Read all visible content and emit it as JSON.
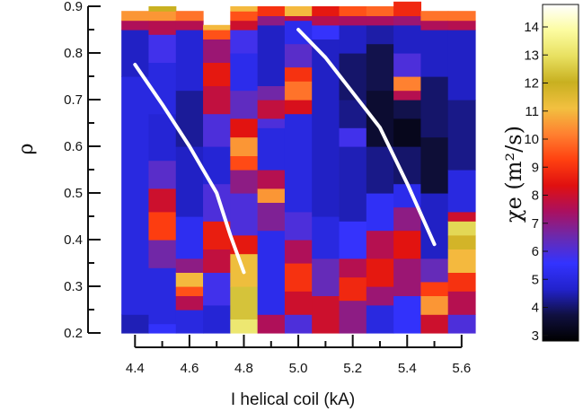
{
  "chart_data": {
    "type": "heatmap",
    "xlabel": "I helical coil (kA)",
    "ylabel": "ρ",
    "x_tick_labels": [
      "4.4",
      "4.6",
      "4.8",
      "5.0",
      "5.2",
      "5.4",
      "5.6"
    ],
    "x_ticks": [
      4.4,
      4.6,
      4.8,
      5.0,
      5.2,
      5.4,
      5.6
    ],
    "y_tick_labels": [
      "0.2",
      "0.3",
      "0.4",
      "0.5",
      "0.6",
      "0.7",
      "0.8",
      "0.9"
    ],
    "y_ticks": [
      0.2,
      0.3,
      0.4,
      0.5,
      0.6,
      0.7,
      0.8,
      0.9
    ],
    "xlim": [
      4.3,
      5.65
    ],
    "ylim": [
      0.2,
      0.9
    ],
    "colorbar": {
      "label": "χe (m²/s)",
      "ticks": [
        3,
        4,
        5,
        6,
        7,
        8,
        9,
        10,
        11,
        12,
        13,
        14
      ],
      "range": [
        2.8,
        14.8
      ],
      "colors": [
        "#000000",
        "#101040",
        "#2222cc",
        "#3333ff",
        "#6a2ab0",
        "#aa1060",
        "#e01010",
        "#ff4010",
        "#ff8030",
        "#f2c040",
        "#c8b020",
        "#e8e060",
        "#fcfca0",
        "#ffffff"
      ]
    },
    "columns": [
      {
        "x": 4.4,
        "rows": [
          [
            0.2,
            0.24,
            4.5
          ],
          [
            0.24,
            0.75,
            5.0
          ],
          [
            0.75,
            0.85,
            4.6
          ],
          [
            0.85,
            0.87,
            7.5
          ],
          [
            0.87,
            0.89,
            10.5
          ]
        ]
      },
      {
        "x": 4.5,
        "rows": [
          [
            0.2,
            0.22,
            5.5
          ],
          [
            0.22,
            0.34,
            5.0
          ],
          [
            0.34,
            0.4,
            6.6
          ],
          [
            0.4,
            0.46,
            9.2
          ],
          [
            0.46,
            0.51,
            8.0
          ],
          [
            0.51,
            0.57,
            6.2
          ],
          [
            0.57,
            0.67,
            4.8
          ],
          [
            0.67,
            0.78,
            5.0
          ],
          [
            0.78,
            0.84,
            5.8
          ],
          [
            0.84,
            0.87,
            7.6
          ],
          [
            0.87,
            0.89,
            10.5
          ],
          [
            0.89,
            0.9,
            12.0
          ]
        ]
      },
      {
        "x": 4.6,
        "rows": [
          [
            0.2,
            0.25,
            5.0
          ],
          [
            0.25,
            0.28,
            7.6
          ],
          [
            0.28,
            0.3,
            9.5
          ],
          [
            0.3,
            0.33,
            11.0
          ],
          [
            0.33,
            0.36,
            7.0
          ],
          [
            0.36,
            0.45,
            5.3
          ],
          [
            0.45,
            0.6,
            4.6
          ],
          [
            0.6,
            0.72,
            4.3
          ],
          [
            0.72,
            0.85,
            4.8
          ],
          [
            0.85,
            0.87,
            7.6
          ],
          [
            0.87,
            0.89,
            10.0
          ]
        ]
      },
      {
        "x": 4.7,
        "rows": [
          [
            0.2,
            0.26,
            4.8
          ],
          [
            0.26,
            0.33,
            5.8
          ],
          [
            0.33,
            0.38,
            7.8
          ],
          [
            0.38,
            0.44,
            8.6
          ],
          [
            0.44,
            0.52,
            6.0
          ],
          [
            0.52,
            0.6,
            4.8
          ],
          [
            0.6,
            0.67,
            6.0
          ],
          [
            0.67,
            0.73,
            7.8
          ],
          [
            0.73,
            0.78,
            8.5
          ],
          [
            0.78,
            0.83,
            7.2
          ],
          [
            0.83,
            0.85,
            9.5
          ],
          [
            0.85,
            0.86,
            11.0
          ]
        ]
      },
      {
        "x": 4.8,
        "rows": [
          [
            0.2,
            0.23,
            13.2
          ],
          [
            0.23,
            0.3,
            12.4
          ],
          [
            0.3,
            0.37,
            11.2
          ],
          [
            0.37,
            0.41,
            8.5
          ],
          [
            0.41,
            0.5,
            6.0
          ],
          [
            0.5,
            0.55,
            7.0
          ],
          [
            0.55,
            0.58,
            9.4
          ],
          [
            0.58,
            0.62,
            10.5
          ],
          [
            0.62,
            0.66,
            8.4
          ],
          [
            0.66,
            0.72,
            6.3
          ],
          [
            0.72,
            0.8,
            5.2
          ],
          [
            0.8,
            0.85,
            5.8
          ],
          [
            0.85,
            0.87,
            8.0
          ],
          [
            0.87,
            0.89,
            9.5
          ],
          [
            0.89,
            0.9,
            11.0
          ]
        ]
      },
      {
        "x": 4.9,
        "rows": [
          [
            0.2,
            0.24,
            7.5
          ],
          [
            0.24,
            0.42,
            5.2
          ],
          [
            0.42,
            0.48,
            6.8
          ],
          [
            0.48,
            0.51,
            10.5
          ],
          [
            0.51,
            0.55,
            7.6
          ],
          [
            0.55,
            0.64,
            5.0
          ],
          [
            0.64,
            0.66,
            6.0
          ],
          [
            0.66,
            0.7,
            7.8
          ],
          [
            0.7,
            0.73,
            6.6
          ],
          [
            0.73,
            0.86,
            4.6
          ],
          [
            0.86,
            0.88,
            7.0
          ],
          [
            0.88,
            0.9,
            9.0
          ]
        ]
      },
      {
        "x": 5.0,
        "rows": [
          [
            0.2,
            0.24,
            6.0
          ],
          [
            0.24,
            0.29,
            8.0
          ],
          [
            0.29,
            0.35,
            9.0
          ],
          [
            0.35,
            0.4,
            7.5
          ],
          [
            0.4,
            0.46,
            6.0
          ],
          [
            0.46,
            0.67,
            5.0
          ],
          [
            0.67,
            0.7,
            8.2
          ],
          [
            0.7,
            0.74,
            10.0
          ],
          [
            0.74,
            0.77,
            9.0
          ],
          [
            0.77,
            0.82,
            6.2
          ],
          [
            0.82,
            0.87,
            5.2
          ],
          [
            0.87,
            0.88,
            7.8
          ],
          [
            0.88,
            0.9,
            11.0
          ]
        ]
      },
      {
        "x": 5.1,
        "rows": [
          [
            0.2,
            0.28,
            8.0
          ],
          [
            0.28,
            0.36,
            6.4
          ],
          [
            0.36,
            0.45,
            5.0
          ],
          [
            0.45,
            0.83,
            4.6
          ],
          [
            0.83,
            0.86,
            5.6
          ],
          [
            0.86,
            0.88,
            7.6
          ],
          [
            0.88,
            0.9,
            8.5
          ]
        ]
      },
      {
        "x": 5.2,
        "rows": [
          [
            0.2,
            0.27,
            7.0
          ],
          [
            0.27,
            0.32,
            8.8
          ],
          [
            0.32,
            0.36,
            7.6
          ],
          [
            0.36,
            0.44,
            5.6
          ],
          [
            0.44,
            0.6,
            4.5
          ],
          [
            0.6,
            0.64,
            5.8
          ],
          [
            0.64,
            0.7,
            4.2
          ],
          [
            0.7,
            0.8,
            4.0
          ],
          [
            0.8,
            0.86,
            4.6
          ],
          [
            0.86,
            0.88,
            7.4
          ],
          [
            0.88,
            0.9,
            9.5
          ]
        ]
      },
      {
        "x": 5.3,
        "rows": [
          [
            0.2,
            0.26,
            5.0
          ],
          [
            0.26,
            0.3,
            7.2
          ],
          [
            0.3,
            0.36,
            8.5
          ],
          [
            0.36,
            0.42,
            7.6
          ],
          [
            0.42,
            0.5,
            5.4
          ],
          [
            0.5,
            0.6,
            4.2
          ],
          [
            0.6,
            0.72,
            3.5
          ],
          [
            0.72,
            0.82,
            3.8
          ],
          [
            0.82,
            0.86,
            4.4
          ],
          [
            0.86,
            0.88,
            7.4
          ],
          [
            0.88,
            0.9,
            9.8
          ]
        ]
      },
      {
        "x": 5.4,
        "rows": [
          [
            0.2,
            0.28,
            5.5
          ],
          [
            0.28,
            0.36,
            7.2
          ],
          [
            0.36,
            0.42,
            8.4
          ],
          [
            0.42,
            0.47,
            7.0
          ],
          [
            0.47,
            0.52,
            5.2
          ],
          [
            0.52,
            0.6,
            4.0
          ],
          [
            0.6,
            0.66,
            3.2
          ],
          [
            0.66,
            0.7,
            3.8
          ],
          [
            0.7,
            0.72,
            7.6
          ],
          [
            0.72,
            0.75,
            10.2
          ],
          [
            0.75,
            0.8,
            6.0
          ],
          [
            0.8,
            0.86,
            4.6
          ],
          [
            0.86,
            0.88,
            7.2
          ],
          [
            0.88,
            0.91,
            8.8
          ]
        ]
      },
      {
        "x": 5.5,
        "rows": [
          [
            0.2,
            0.24,
            8.0
          ],
          [
            0.24,
            0.28,
            10.5
          ],
          [
            0.28,
            0.31,
            9.2
          ],
          [
            0.31,
            0.36,
            6.4
          ],
          [
            0.36,
            0.5,
            4.6
          ],
          [
            0.5,
            0.62,
            3.6
          ],
          [
            0.62,
            0.75,
            4.0
          ],
          [
            0.75,
            0.85,
            4.6
          ],
          [
            0.85,
            0.87,
            7.5
          ],
          [
            0.87,
            0.89,
            10.0
          ]
        ]
      },
      {
        "x": 5.6,
        "rows": [
          [
            0.2,
            0.24,
            6.0
          ],
          [
            0.24,
            0.29,
            7.6
          ],
          [
            0.29,
            0.33,
            9.0
          ],
          [
            0.33,
            0.38,
            11.0
          ],
          [
            0.38,
            0.41,
            11.8
          ],
          [
            0.41,
            0.44,
            12.8
          ],
          [
            0.44,
            0.46,
            8.0
          ],
          [
            0.46,
            0.55,
            5.0
          ],
          [
            0.55,
            0.7,
            4.2
          ],
          [
            0.7,
            0.85,
            4.6
          ],
          [
            0.85,
            0.87,
            7.6
          ],
          [
            0.87,
            0.89,
            10.0
          ]
        ]
      }
    ],
    "overlay_lines": [
      {
        "color": "#ffffff",
        "points": [
          [
            4.4,
            0.775
          ],
          [
            4.5,
            0.69
          ],
          [
            4.6,
            0.6
          ],
          [
            4.65,
            0.55
          ],
          [
            4.7,
            0.5
          ],
          [
            4.75,
            0.41
          ],
          [
            4.8,
            0.33
          ]
        ]
      },
      {
        "color": "#ffffff",
        "points": [
          [
            5.0,
            0.85
          ],
          [
            5.1,
            0.79
          ],
          [
            5.2,
            0.715
          ],
          [
            5.3,
            0.64
          ],
          [
            5.4,
            0.52
          ],
          [
            5.5,
            0.39
          ]
        ]
      }
    ],
    "grid": false
  }
}
